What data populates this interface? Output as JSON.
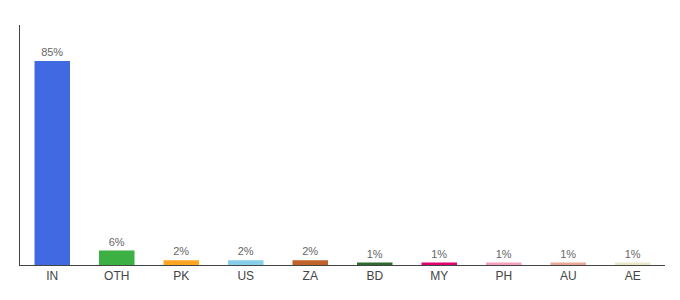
{
  "chart_data": {
    "type": "bar",
    "categories": [
      "IN",
      "OTH",
      "PK",
      "US",
      "ZA",
      "BD",
      "MY",
      "PH",
      "AU",
      "AE"
    ],
    "values": [
      85,
      6,
      2,
      2,
      2,
      1,
      1,
      1,
      1,
      1
    ],
    "value_labels": [
      "85%",
      "6%",
      "2%",
      "2%",
      "2%",
      "1%",
      "1%",
      "1%",
      "1%",
      "1%"
    ],
    "colors": [
      "#4169e1",
      "#3cb043",
      "#ffa520",
      "#87ceeb",
      "#c0622a",
      "#2d6a2d",
      "#e0006f",
      "#f4a0b8",
      "#e8a898",
      "#e8e8c8"
    ],
    "ylim": [
      0,
      100
    ],
    "grid": false,
    "data_labels": true,
    "tick_labels": "x"
  }
}
